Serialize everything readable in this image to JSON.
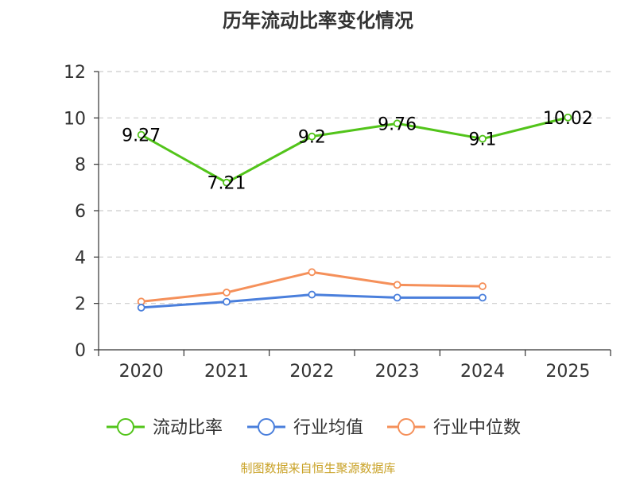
{
  "chart_data": {
    "type": "line",
    "title": "历年流动比率变化情况",
    "categories": [
      "2020",
      "2021",
      "2022",
      "2023",
      "2024",
      "2025"
    ],
    "ylim": [
      0,
      12
    ],
    "yticks": [
      0,
      2,
      4,
      6,
      8,
      10,
      12
    ],
    "grid": true,
    "legend_position": "bottom",
    "series": [
      {
        "name": "流动比率",
        "color": "#52c41a",
        "values": [
          9.27,
          7.21,
          9.2,
          9.76,
          9.1,
          10.02
        ],
        "labels": [
          "9.27",
          "7.21",
          "9.2",
          "9.76",
          "9.1",
          "10.02"
        ]
      },
      {
        "name": "行业均值",
        "color": "#4a7fdc",
        "values": [
          1.82,
          2.07,
          2.38,
          2.25,
          2.25,
          null
        ]
      },
      {
        "name": "行业中位数",
        "color": "#f5905a",
        "values": [
          2.08,
          2.47,
          3.35,
          2.8,
          2.74,
          null
        ]
      }
    ]
  },
  "source": "制图数据来自恒生聚源数据库"
}
